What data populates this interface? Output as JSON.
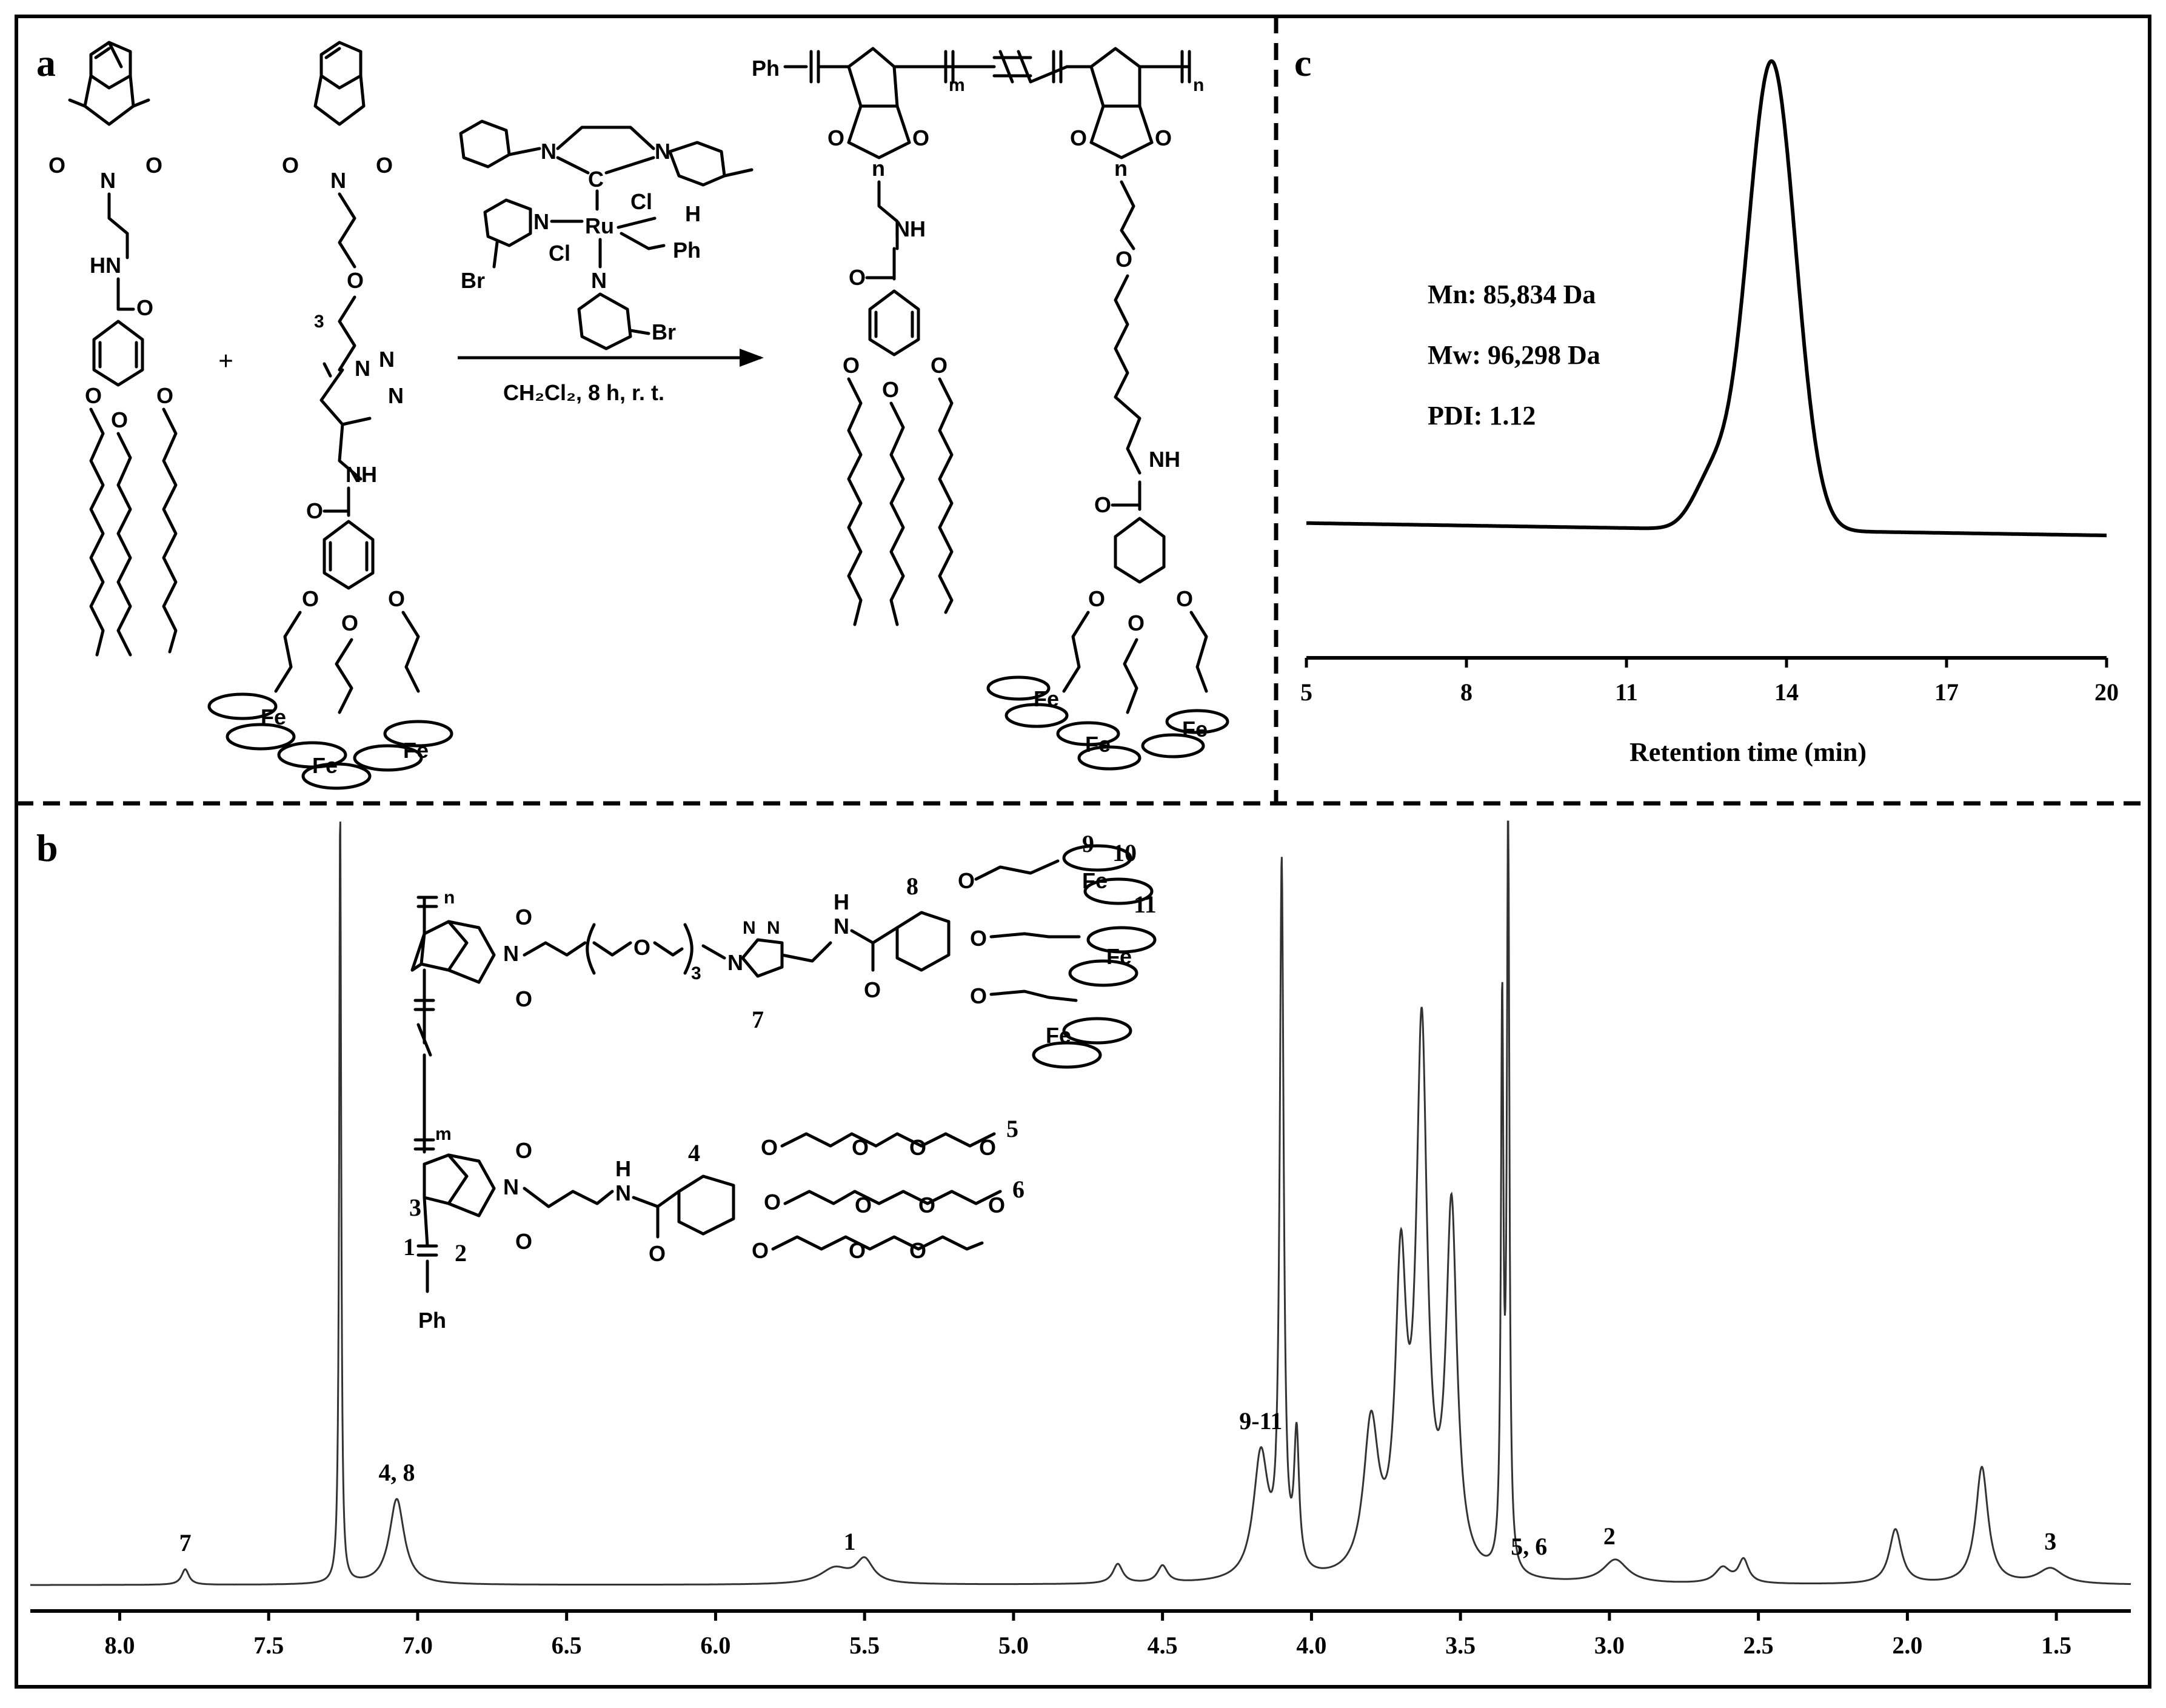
{
  "panels": {
    "a": {
      "label": "a",
      "plus": "+",
      "catalyst_atoms": {
        "n1": "N",
        "n2": "N",
        "c": "C",
        "ru": "Ru",
        "cl_top": "Cl",
        "cl_bottom": "Cl",
        "h": "H",
        "ph": "Ph",
        "n_pyr_left": "N",
        "n_pyr_bottom": "N",
        "br_left": "Br",
        "br_bottom": "Br"
      },
      "conditions": "CH₂Cl₂, 8 h, r. t.",
      "monomer1_atoms": {
        "o1": "O",
        "o2": "O",
        "n": "N",
        "nh": "HN",
        "co_o": "O",
        "o_a": "O",
        "o_b": "O",
        "o_c": "O"
      },
      "monomer2_atoms": {
        "o1": "O",
        "o2": "O",
        "n": "N",
        "o_chain": "O",
        "sub3": "3",
        "triazole": "N",
        "n2": "N",
        "n3": "N",
        "nh": "NH",
        "co_o": "O",
        "o_a": "O",
        "o_b": "O",
        "o_c": "O",
        "fe": "Fe"
      },
      "polymer_atoms": {
        "ph": "Ph",
        "m": "m",
        "n": "n",
        "o": "O",
        "nh": "NH",
        "fe": "Fe"
      }
    },
    "b": {
      "label": "b",
      "structure_atoms": {
        "n_top": "n",
        "m_bottom": "m",
        "ph": "Ph",
        "o": "O",
        "n": "N",
        "sub3": "3",
        "triazole": "N",
        "h": "H",
        "nh": "N",
        "fe": "Fe"
      },
      "structure_labels": [
        "1",
        "2",
        "3",
        "4",
        "5",
        "6",
        "7",
        "8",
        "9",
        "10",
        "11"
      ],
      "peak_labels": [
        {
          "text": "7",
          "ppm": 7.78
        },
        {
          "text": "4, 8",
          "ppm": 7.07
        },
        {
          "text": "1",
          "ppm": 5.55
        },
        {
          "text": "9-11",
          "ppm": 4.17
        },
        {
          "text": "5, 6",
          "ppm": 3.27
        },
        {
          "text": "2",
          "ppm": 3.0
        },
        {
          "text": "3",
          "ppm": 1.52
        }
      ]
    },
    "c": {
      "label": "c",
      "annotations": [
        "Mn: 85,834 Da",
        "Mw: 96,298 Da",
        "PDI: 1.12"
      ]
    }
  },
  "chart_data": [
    {
      "type": "line",
      "panel": "b",
      "xlabel": "",
      "ylabel": "",
      "xlim": [
        8.3,
        1.25
      ],
      "x_reversed": true,
      "x_ticks": [
        "8.0",
        "7.5",
        "7.0",
        "6.5",
        "6.0",
        "5.5",
        "5.0",
        "4.5",
        "4.0",
        "3.5",
        "3.0",
        "2.5",
        "2.0",
        "1.5"
      ],
      "x_tick_values": [
        8.0,
        7.5,
        7.0,
        6.5,
        6.0,
        5.5,
        5.0,
        4.5,
        4.0,
        3.5,
        3.0,
        2.5,
        2.0,
        1.5
      ],
      "ylim": [
        0,
        1.0
      ],
      "baseline": 0.02,
      "peaks": [
        {
          "x": 7.78,
          "h": 0.02,
          "w": 0.015
        },
        {
          "x": 7.26,
          "h": 1.0,
          "w": 0.004
        },
        {
          "x": 7.07,
          "h": 0.11,
          "w": 0.03
        },
        {
          "x": 5.6,
          "h": 0.02,
          "w": 0.06
        },
        {
          "x": 5.5,
          "h": 0.03,
          "w": 0.035
        },
        {
          "x": 4.65,
          "h": 0.025,
          "w": 0.02
        },
        {
          "x": 4.5,
          "h": 0.022,
          "w": 0.02
        },
        {
          "x": 4.17,
          "h": 0.16,
          "w": 0.03
        },
        {
          "x": 4.1,
          "h": 0.9,
          "w": 0.008
        },
        {
          "x": 4.05,
          "h": 0.17,
          "w": 0.01
        },
        {
          "x": 3.8,
          "h": 0.19,
          "w": 0.03
        },
        {
          "x": 3.7,
          "h": 0.37,
          "w": 0.022
        },
        {
          "x": 3.63,
          "h": 0.68,
          "w": 0.022
        },
        {
          "x": 3.53,
          "h": 0.46,
          "w": 0.022
        },
        {
          "x": 3.36,
          "h": 0.71,
          "w": 0.005
        },
        {
          "x": 3.34,
          "h": 0.96,
          "w": 0.005
        },
        {
          "x": 2.98,
          "h": 0.03,
          "w": 0.05
        },
        {
          "x": 2.62,
          "h": 0.02,
          "w": 0.03
        },
        {
          "x": 2.55,
          "h": 0.03,
          "w": 0.02
        },
        {
          "x": 2.04,
          "h": 0.07,
          "w": 0.025
        },
        {
          "x": 1.75,
          "h": 0.15,
          "w": 0.025
        },
        {
          "x": 1.52,
          "h": 0.02,
          "w": 0.05
        }
      ]
    },
    {
      "type": "line",
      "panel": "c",
      "xlabel": "Retention time (min)",
      "ylabel": "",
      "xlim": [
        5,
        20
      ],
      "x_ticks": [
        "5",
        "8",
        "11",
        "14",
        "17",
        "20"
      ],
      "x_tick_values": [
        5,
        8,
        11,
        14,
        17,
        20
      ],
      "ylim": [
        0,
        1.0
      ],
      "baseline_start": 0.13,
      "baseline_end": 0.11,
      "peaks": [
        {
          "x": 13.72,
          "h": 0.76,
          "w": 0.45
        },
        {
          "x": 12.6,
          "h": 0.08,
          "w": 0.35
        }
      ]
    }
  ]
}
